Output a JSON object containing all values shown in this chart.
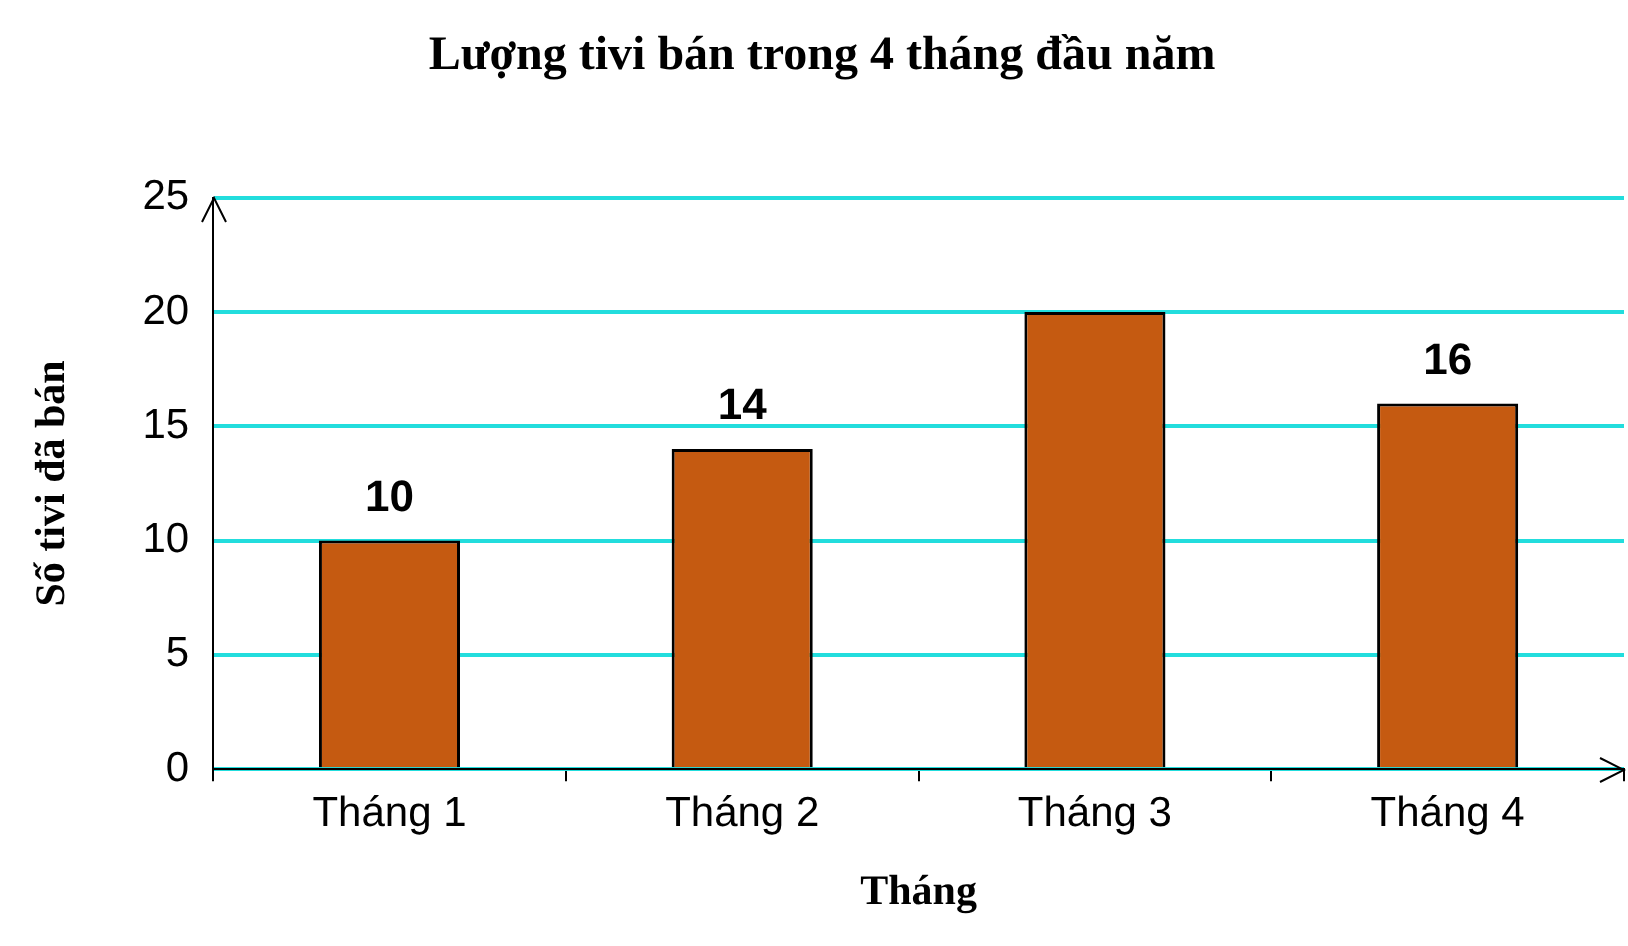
{
  "chart_data": {
    "type": "bar",
    "title": "Lượng tivi bán trong 4 tháng đầu năm",
    "xlabel": "Tháng",
    "ylabel": "Số tivi đã bán",
    "categories": [
      "Tháng 1",
      "Tháng 2",
      "Tháng 3",
      "Tháng 4"
    ],
    "values": [
      10,
      14,
      20,
      16
    ],
    "color": "#c55a11",
    "value_labels": [
      "10",
      "14",
      null,
      "16"
    ],
    "ylim": [
      0,
      25
    ],
    "yticks": [
      0,
      5,
      10,
      15,
      20,
      25
    ],
    "grid": "y",
    "legend": false
  }
}
